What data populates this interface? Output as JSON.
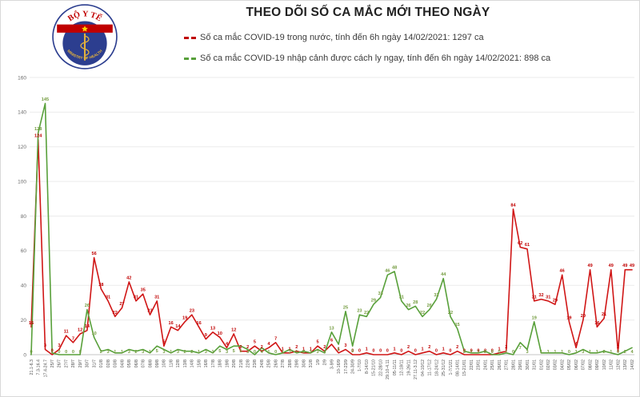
{
  "header": {
    "title": "THEO DÕI SỐ CA MẮC MỚI THEO NGÀY",
    "logo": {
      "top_text": "BỘ Y TẾ",
      "bottom_text": "MINISTRY OF HEALTH"
    }
  },
  "legend": {
    "items": [
      {
        "label": "Số ca mắc COVID-19 trong nước, tính đến 6h ngày 14/02/2021: 1297 ca",
        "color": "#c00000"
      },
      {
        "label": "Số ca mắc COVID-19 nhập cảnh được cách ly ngay, tính đến 6h ngày 14/02/2021: 898 ca",
        "color": "#58a03a"
      }
    ]
  },
  "chart_data": {
    "type": "line",
    "title": "THEO DÕI SỐ CA MẮC MỚI THEO NGÀY",
    "ylim": [
      0,
      160
    ],
    "ytick_step": 20,
    "grid": "horizontal",
    "legend_position": "top",
    "categories": [
      "21.1-6.3",
      "7.3-16.4",
      "17.4-24.7",
      "25/7",
      "26/7",
      "27/7",
      "28/7",
      "29/7",
      "30/7",
      "31/7",
      "01/8",
      "02/8",
      "03/8",
      "04/8",
      "05/8",
      "06/8",
      "07/8",
      "08/8",
      "09/8",
      "10/8",
      "11/8",
      "12/8",
      "13/8",
      "14/8",
      "15/8",
      "16/8",
      "17/8",
      "18/8",
      "19/8",
      "20/8",
      "21/8",
      "22/8",
      "23/8",
      "24/8",
      "25/8",
      "26/8",
      "27/8",
      "28/8",
      "29/8",
      "30/8",
      "31/8",
      "1/9",
      "2/9",
      "3-9/9",
      "10-16/9",
      "17-23/9",
      "24-30/9",
      "1-7/10",
      "8-14/10",
      "15-21/10",
      "22-28/10",
      "29.10-4.11",
      "05-11/11",
      "12-18/11",
      "19-26/11",
      "27.11-3.12",
      "04-10/12",
      "11-17/12",
      "18-24/12",
      "25-31/12",
      "1-7/1/21",
      "08-14/01",
      "15-21/01",
      "22/01",
      "23/01",
      "24/01",
      "25/01",
      "26/01",
      "27/01",
      "28/01",
      "29/01",
      "30/01",
      "31/01",
      "01/02",
      "02/02",
      "03/02",
      "04/02",
      "05/02",
      "06/02",
      "07/02",
      "08/02",
      "09/02",
      "10/02",
      "11/02",
      "12/02",
      "13/02",
      "14/02"
    ],
    "series": [
      {
        "name": "Số ca mắc COVID-19 trong nước",
        "color": "#d01616",
        "label_color": "#c00000",
        "values": [
          16,
          124,
          3,
          0,
          3,
          11,
          7,
          12,
          14,
          56,
          38,
          31,
          22,
          27,
          42,
          31,
          35,
          23,
          31,
          5,
          16,
          14,
          19,
          23,
          16,
          9,
          13,
          10,
          4,
          12,
          2,
          2,
          5,
          2,
          4,
          7,
          1,
          1,
          2,
          1,
          1,
          5,
          2,
          6,
          1,
          3,
          0,
          0,
          1,
          0,
          0,
          0,
          1,
          0,
          2,
          0,
          1,
          2,
          0,
          1,
          0,
          2,
          0,
          0,
          0,
          0,
          0,
          1,
          2,
          84,
          62,
          61,
          31,
          32,
          31,
          29,
          46,
          19,
          4,
          20,
          49,
          16,
          21,
          49,
          2,
          49,
          49
        ]
      },
      {
        "name": "Số ca mắc COVID-19 nhập cảnh được cách ly ngay",
        "color": "#58a03a",
        "label_color": "#739b3e",
        "values": [
          0,
          128,
          145,
          1,
          0,
          0,
          0,
          0,
          26,
          10,
          2,
          3,
          1,
          1,
          3,
          2,
          3,
          1,
          5,
          3,
          1,
          3,
          2,
          2,
          1,
          3,
          1,
          5,
          3,
          5,
          5,
          3,
          0,
          4,
          1,
          0,
          1,
          3,
          1,
          2,
          1,
          3,
          1,
          13,
          6,
          25,
          5,
          23,
          22,
          29,
          33,
          46,
          48,
          31,
          26,
          28,
          22,
          26,
          32,
          44,
          22,
          15,
          2,
          1,
          1,
          2,
          0,
          0,
          1,
          0,
          7,
          3,
          19,
          1,
          1,
          1,
          1,
          0,
          1,
          3,
          1,
          1,
          2,
          1,
          0,
          2,
          4
        ]
      }
    ]
  }
}
